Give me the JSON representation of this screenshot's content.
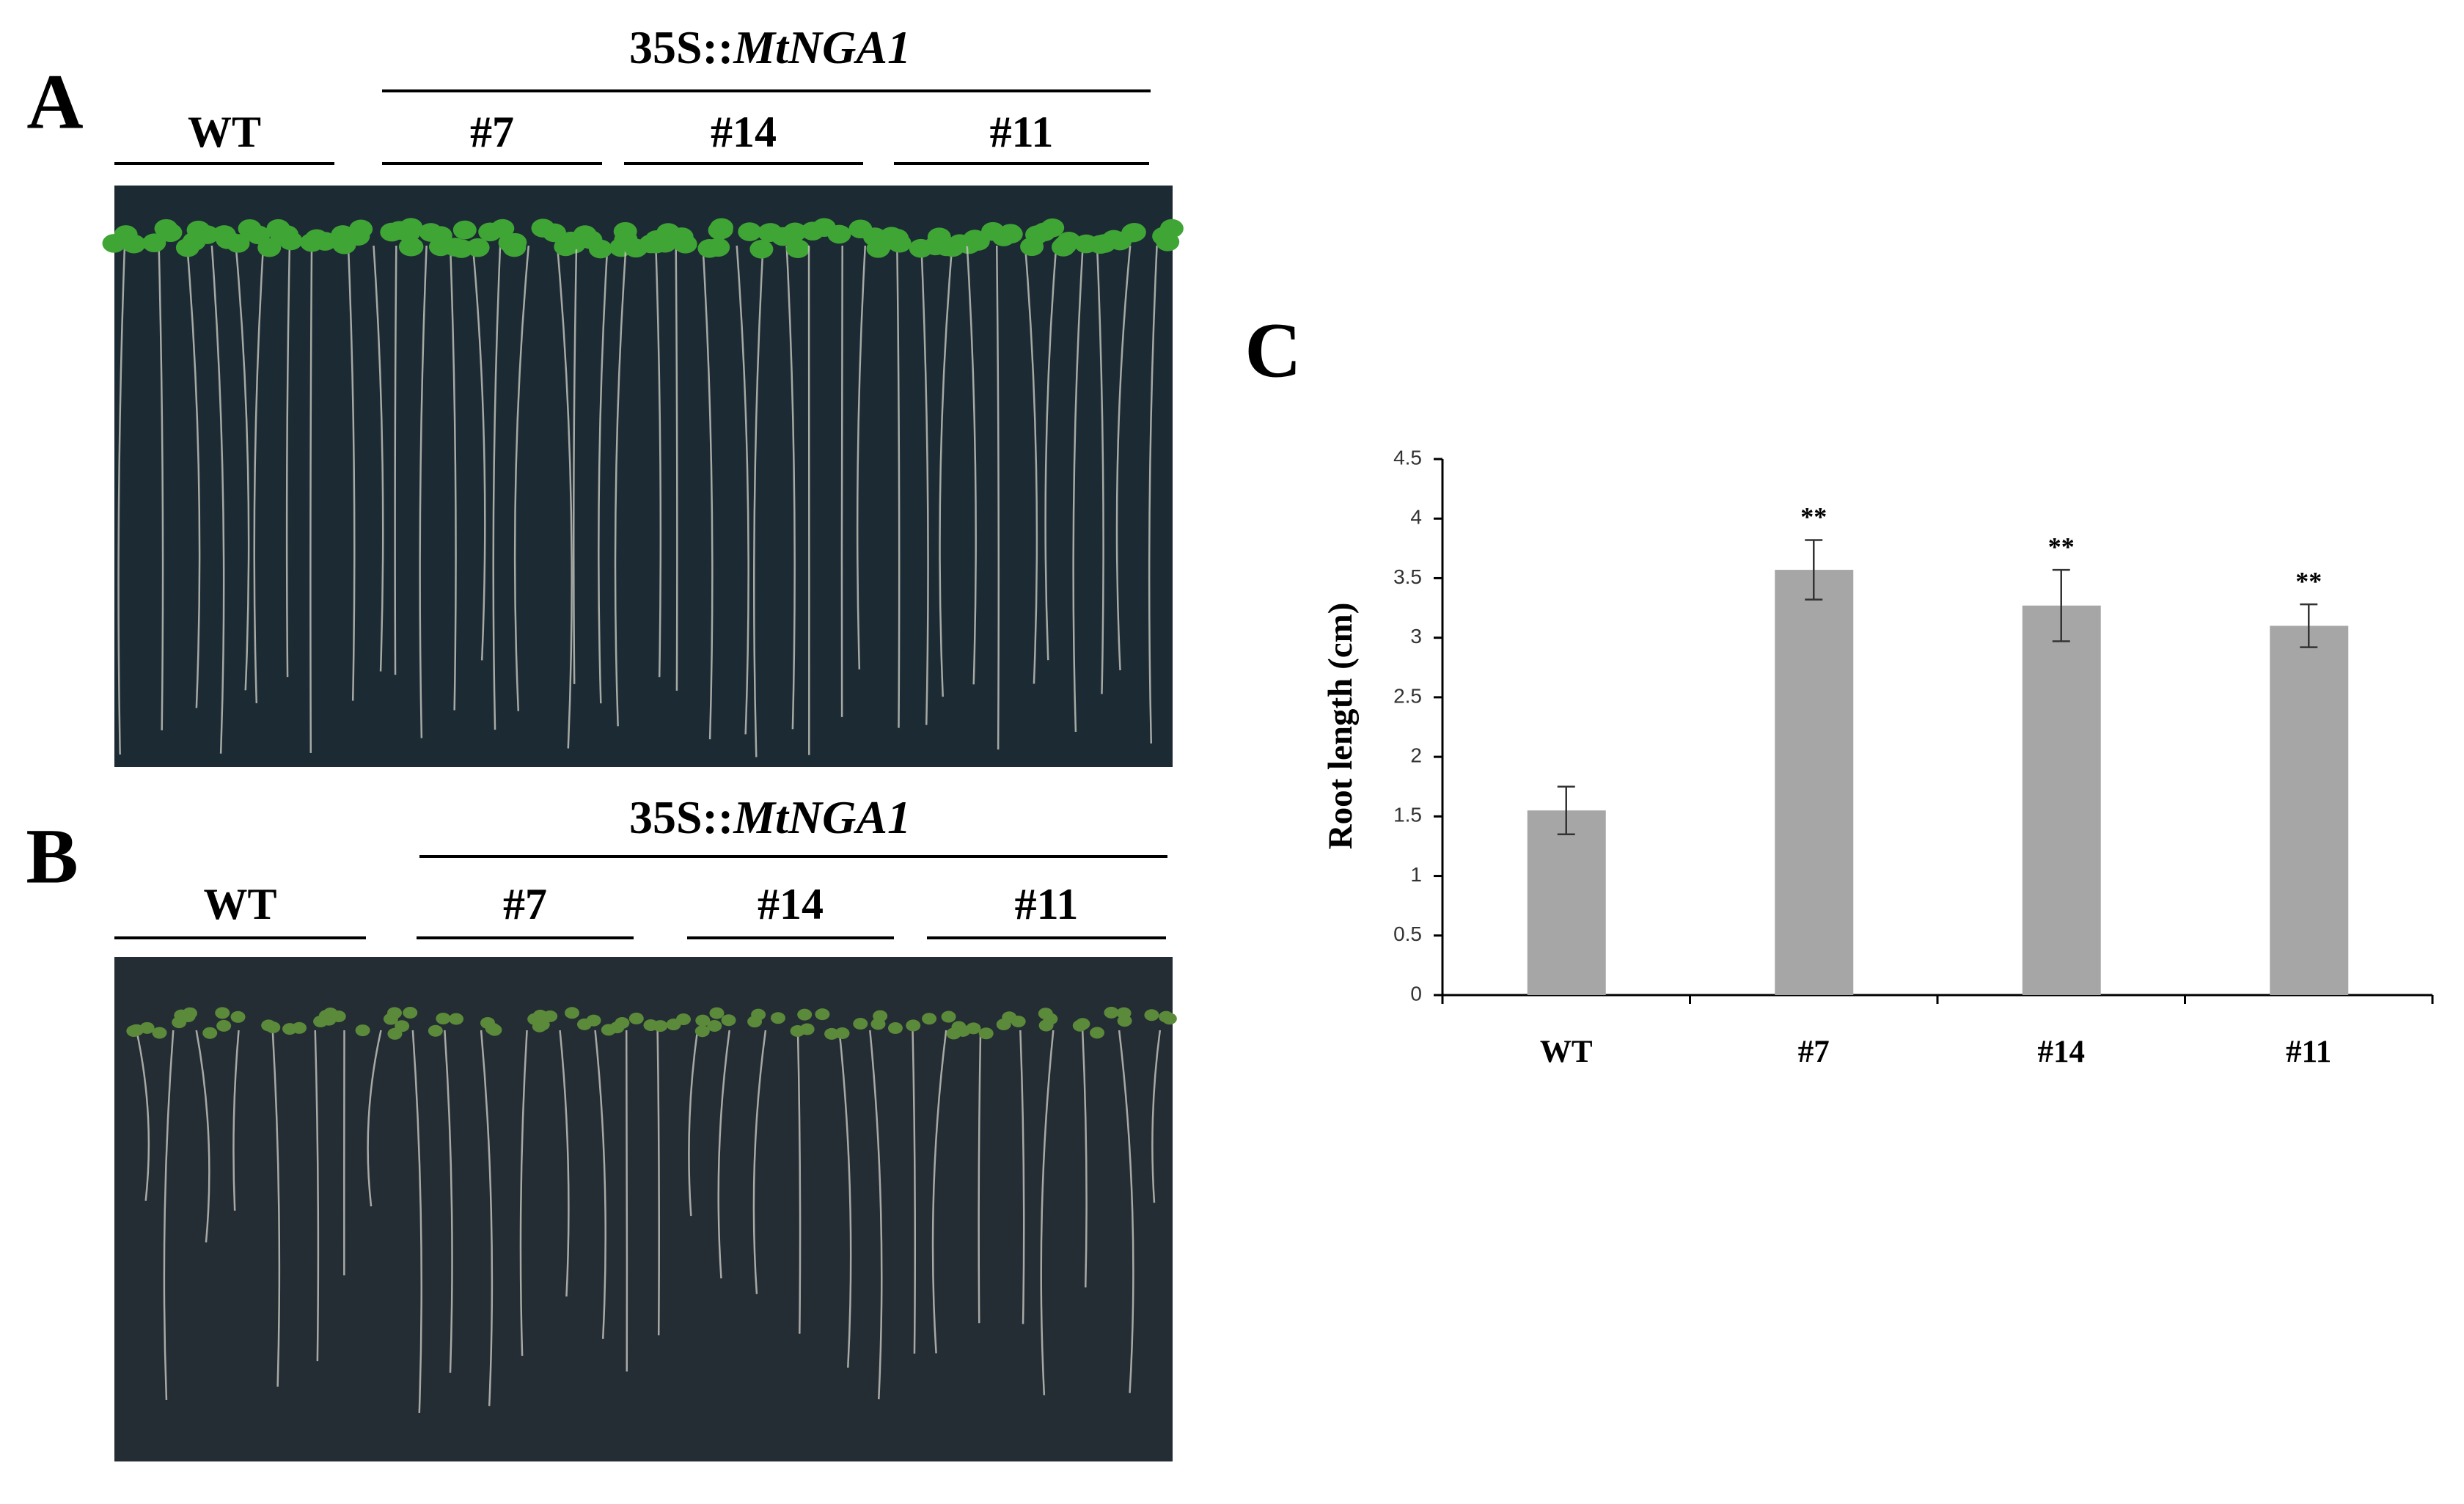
{
  "panels": [
    {
      "label": "A",
      "construct": {
        "prefix": "35S::",
        "gene": "MtNGA1"
      },
      "groups": [
        "WT",
        "#7",
        "#14",
        "#11"
      ]
    },
    {
      "label": "B",
      "construct": {
        "prefix": "35S::",
        "gene": "MtNGA1"
      },
      "groups": [
        "WT",
        "#7",
        "#14",
        "#11"
      ]
    }
  ],
  "chart_data": {
    "type": "bar",
    "panel_label": "C",
    "y_label": "Root length (cm)",
    "categories": [
      "WT",
      "#7",
      "#14",
      "#11"
    ],
    "values": [
      1.55,
      3.57,
      3.27,
      3.1
    ],
    "errors": [
      0.2,
      0.25,
      0.3,
      0.18
    ],
    "annotations": [
      null,
      "**",
      "**",
      "**"
    ],
    "color": "#a6a6a6",
    "ylim": [
      0,
      4.5
    ],
    "yticks": [
      0,
      0.5,
      1,
      1.5,
      2,
      2.5,
      3,
      3.5,
      4,
      4.5
    ]
  }
}
